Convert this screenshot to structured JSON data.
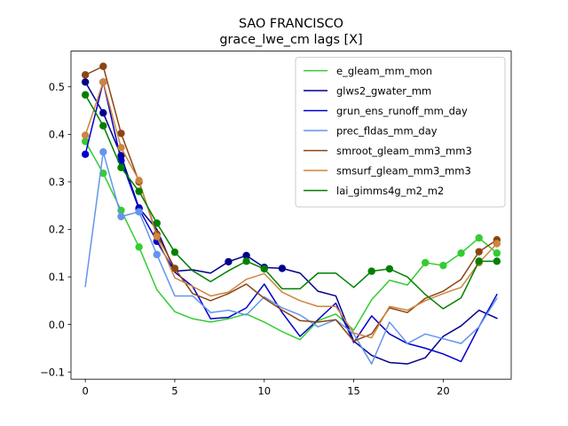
{
  "chart_data": {
    "type": "line",
    "title": "SAO FRANCISCO",
    "subtitle": "grace_lwe_cm lags [X]",
    "xlabel": "",
    "ylabel": "",
    "xlim": [
      -0.8,
      23.8
    ],
    "ylim": [
      -0.115,
      0.575
    ],
    "xticks": [
      0,
      5,
      10,
      15,
      20
    ],
    "yticks": [
      -0.1,
      0.0,
      0.1,
      0.2,
      0.3,
      0.4,
      0.5
    ],
    "ytick_labels": [
      "−0.1",
      "0.0",
      "0.1",
      "0.2",
      "0.3",
      "0.4",
      "0.5"
    ],
    "grid": false,
    "legend_position": "upper-right",
    "x": [
      0,
      1,
      2,
      3,
      4,
      5,
      6,
      7,
      8,
      9,
      10,
      11,
      12,
      13,
      14,
      15,
      16,
      17,
      18,
      19,
      20,
      21,
      22,
      23
    ],
    "series": [
      {
        "name": "e_gleam_mm_mon",
        "color": "#32cd32",
        "values": [
          0.385,
          0.318,
          0.24,
          0.163,
          0.073,
          0.027,
          0.012,
          0.005,
          0.012,
          0.022,
          0.005,
          -0.015,
          -0.032,
          0.008,
          0.022,
          -0.012,
          0.052,
          0.093,
          0.083,
          0.13,
          0.124,
          0.15,
          0.182,
          0.15
        ],
        "markers": [
          0,
          1,
          2,
          3,
          19,
          20,
          21,
          22,
          23
        ]
      },
      {
        "name": "glws2_gwater_mm",
        "color": "#00008b",
        "values": [
          0.51,
          0.445,
          0.355,
          0.245,
          0.2,
          0.112,
          0.115,
          0.108,
          0.132,
          0.145,
          0.12,
          0.118,
          0.108,
          0.07,
          0.06,
          -0.035,
          -0.065,
          -0.08,
          -0.083,
          -0.07,
          -0.025,
          -0.003,
          0.03,
          0.013
        ],
        "markers": [
          0,
          1,
          2,
          3,
          8,
          9,
          10,
          11
        ]
      },
      {
        "name": "grun_ens_runoff_mm_day",
        "color": "#0000cd",
        "values": [
          0.358,
          0.51,
          0.345,
          0.243,
          0.175,
          0.11,
          0.08,
          0.012,
          0.015,
          0.035,
          0.085,
          0.025,
          -0.025,
          0.01,
          0.045,
          -0.038,
          0.018,
          -0.02,
          -0.04,
          -0.05,
          -0.062,
          -0.078,
          -0.005,
          0.063
        ],
        "markers": [
          0,
          1,
          2,
          3,
          4
        ]
      },
      {
        "name": "prec_fldas_mm_day",
        "color": "#6495ed",
        "values": [
          0.08,
          0.363,
          0.227,
          0.237,
          0.147,
          0.06,
          0.06,
          0.025,
          0.03,
          0.02,
          0.058,
          0.035,
          0.02,
          -0.005,
          0.01,
          -0.02,
          -0.083,
          0.005,
          -0.04,
          -0.02,
          -0.03,
          -0.04,
          -0.005,
          0.055
        ],
        "markers": [
          1,
          2,
          3,
          4
        ]
      },
      {
        "name": "smroot_gleam_mm3_mm3",
        "color": "#8b4513",
        "values": [
          0.525,
          0.543,
          0.402,
          0.3,
          0.19,
          0.118,
          0.065,
          0.05,
          0.065,
          0.085,
          0.055,
          0.03,
          0.008,
          0.005,
          0.01,
          -0.035,
          -0.02,
          0.035,
          0.025,
          0.055,
          0.07,
          0.095,
          0.153,
          0.178
        ],
        "markers": [
          0,
          1,
          2,
          3,
          4,
          5,
          22,
          23
        ]
      },
      {
        "name": "smsurf_gleam_mm3_mm3",
        "color": "#cd853f",
        "values": [
          0.398,
          0.51,
          0.372,
          0.303,
          0.185,
          0.098,
          0.08,
          0.06,
          0.068,
          0.095,
          0.107,
          0.068,
          0.05,
          0.038,
          0.038,
          -0.018,
          -0.028,
          0.038,
          0.03,
          0.05,
          0.065,
          0.078,
          0.13,
          0.17
        ],
        "markers": [
          0,
          1,
          2,
          3,
          4,
          22,
          23
        ]
      },
      {
        "name": "lai_gimms4g_m2_m2",
        "color": "#008000",
        "values": [
          0.483,
          0.418,
          0.33,
          0.28,
          0.213,
          0.152,
          0.113,
          0.09,
          0.113,
          0.133,
          0.117,
          0.075,
          0.075,
          0.108,
          0.108,
          0.078,
          0.112,
          0.117,
          0.1,
          0.063,
          0.033,
          0.056,
          0.133,
          0.133
        ],
        "markers": [
          0,
          1,
          2,
          3,
          4,
          5,
          9,
          10,
          16,
          17,
          22,
          23
        ]
      }
    ]
  }
}
